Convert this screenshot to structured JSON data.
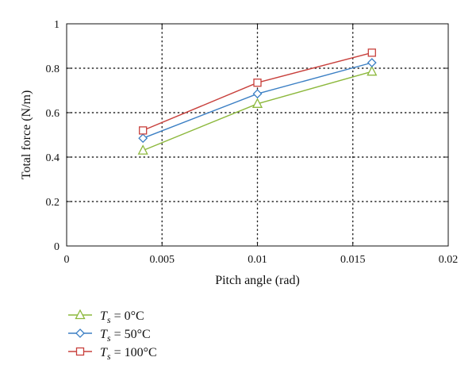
{
  "chart_data": {
    "type": "line",
    "xlabel": "Pitch angle (rad)",
    "ylabel": "Total force (N/m)",
    "xlim": [
      0,
      0.02
    ],
    "ylim": [
      0,
      1
    ],
    "x_ticks": [
      0,
      0.005,
      0.01,
      0.015,
      0.02
    ],
    "x_tick_labels": [
      "0",
      "0.005",
      "0.01",
      "0.015",
      "0.02"
    ],
    "y_ticks": [
      0,
      0.2,
      0.4,
      0.6,
      0.8,
      1
    ],
    "y_tick_labels": [
      "0",
      "0.2",
      "0.4",
      "0.6",
      "0.8",
      "1"
    ],
    "grid": true,
    "grid_style": "dotted",
    "legend_position": "bottom-left, outside plot",
    "series": [
      {
        "name": "T_s = 0°C",
        "legend_main": "T",
        "legend_sub": "s",
        "legend_rest": " = 0°C",
        "color": "#8cb83c",
        "marker": "triangle",
        "x": [
          0.004,
          0.01,
          0.016
        ],
        "y": [
          0.43,
          0.64,
          0.785
        ]
      },
      {
        "name": "T_s = 50°C",
        "legend_main": "T",
        "legend_sub": "s",
        "legend_rest": " = 50°C",
        "color": "#3b7fc4",
        "marker": "diamond",
        "x": [
          0.004,
          0.01,
          0.016
        ],
        "y": [
          0.485,
          0.685,
          0.825
        ]
      },
      {
        "name": "T_s = 100°C",
        "legend_main": "T",
        "legend_sub": "s",
        "legend_rest": " = 100°C",
        "color": "#c8403c",
        "marker": "square",
        "x": [
          0.004,
          0.01,
          0.016
        ],
        "y": [
          0.52,
          0.735,
          0.87
        ]
      }
    ]
  }
}
